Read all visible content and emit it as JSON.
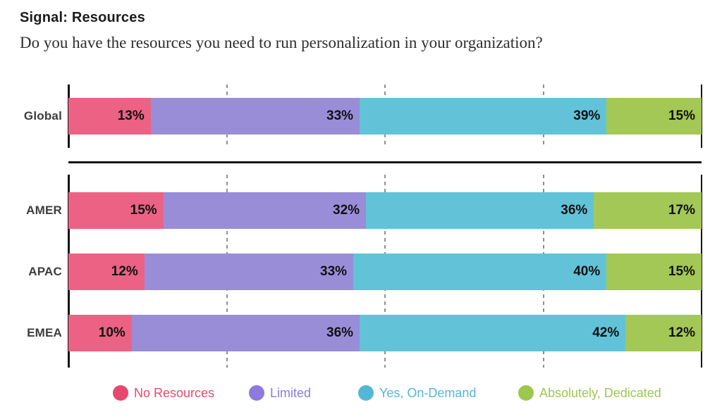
{
  "page": {
    "title": "Signal: Resources",
    "question": "Do you have the resources you need to run personalization in your organization?"
  },
  "chart_data": {
    "type": "bar",
    "variant": "horizontal-stacked",
    "title": "Signal: Resources",
    "subtitle": "Do you have the resources you need to run personalization in your organization?",
    "unit": "%",
    "xlim": [
      0,
      100
    ],
    "gridlines_pct": [
      25,
      50,
      75
    ],
    "grid_style": "dashed-vertical",
    "legend_position": "bottom",
    "value_suffix": "%",
    "series": [
      {
        "name": "No Resources",
        "color": "#EC6284",
        "legend_color": "#E8486F"
      },
      {
        "name": "Limited",
        "color": "#9A8DD8",
        "legend_color": "#8D7ADF"
      },
      {
        "name": "Yes, On-Demand",
        "color": "#62C2D8",
        "legend_color": "#53B7D8"
      },
      {
        "name": "Absolutely, Dedicated",
        "color": "#A3C855",
        "legend_color": "#9EC74C"
      }
    ],
    "groups": [
      {
        "name": "global",
        "rows": [
          {
            "label": "Global",
            "values": [
              13,
              33,
              39,
              15
            ]
          }
        ]
      },
      {
        "name": "regions",
        "rows": [
          {
            "label": "AMER",
            "values": [
              15,
              32,
              36,
              17
            ]
          },
          {
            "label": "APAC",
            "values": [
              12,
              33,
              40,
              15
            ]
          },
          {
            "label": "EMEA",
            "values": [
              10,
              36,
              42,
              12
            ]
          }
        ]
      }
    ]
  }
}
